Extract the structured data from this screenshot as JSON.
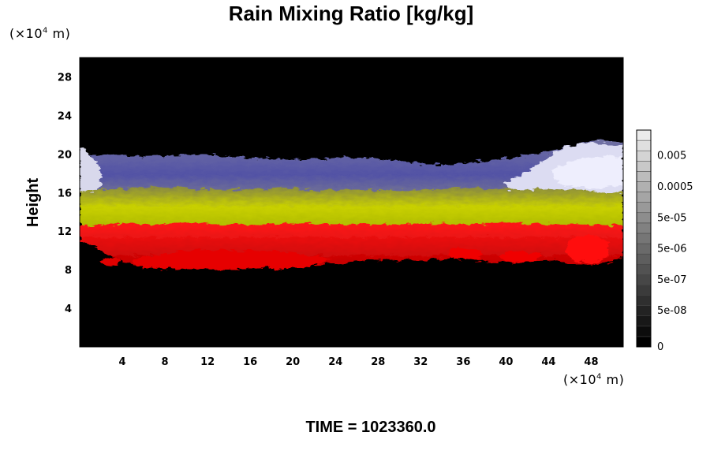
{
  "title": "Rain Mixing Ratio [kg/kg]",
  "y_unit": {
    "prefix": "(×10",
    "exp": "4",
    "suffix": " m)"
  },
  "x_unit": {
    "prefix": "(×10",
    "exp": "4",
    "suffix": " m)"
  },
  "ylabel": "Height",
  "footer": "TIME = 1023360.0",
  "colors": {
    "background": "#000000",
    "lowest_band": "#ff0000",
    "middle_band": "#c8d200",
    "upper_band": "#5a5aa8",
    "upper_highlight": "#dcdcf0"
  },
  "chart_data": {
    "type": "heatmap",
    "title": "Rain Mixing Ratio [kg/kg]",
    "xlabel": "(×10^4 m)",
    "ylabel": "Height",
    "x_units": "×10^4 m",
    "y_units": "×10^4 m",
    "xlim": [
      0,
      51
    ],
    "ylim": [
      0,
      30
    ],
    "xticks": [
      4,
      8,
      12,
      16,
      20,
      24,
      28,
      32,
      36,
      40,
      44,
      48
    ],
    "yticks": [
      4,
      8,
      12,
      16,
      20,
      24,
      28
    ],
    "colorbar": {
      "labels": [
        "0",
        "5e-08",
        "5e-07",
        "5e-06",
        "5e-05",
        "0.0005",
        "0.005"
      ],
      "scale": "log",
      "n_levels": 21
    },
    "layers": [
      {
        "color": "red",
        "y_range": [
          8,
          13
        ],
        "x_range": [
          2,
          51
        ]
      },
      {
        "color": "yellow-green",
        "y_range": [
          12.5,
          17
        ],
        "x_range": [
          0,
          51
        ]
      },
      {
        "color": "blue-violet",
        "y_range": [
          15.5,
          20
        ],
        "x_range": [
          0,
          51
        ]
      },
      {
        "color": "white",
        "y_range": [
          15.5,
          21
        ],
        "x_range": [
          0,
          2
        ]
      },
      {
        "color": "white",
        "y_range": [
          15.5,
          21
        ],
        "x_range": [
          40,
          51
        ]
      }
    ],
    "grid": false
  }
}
